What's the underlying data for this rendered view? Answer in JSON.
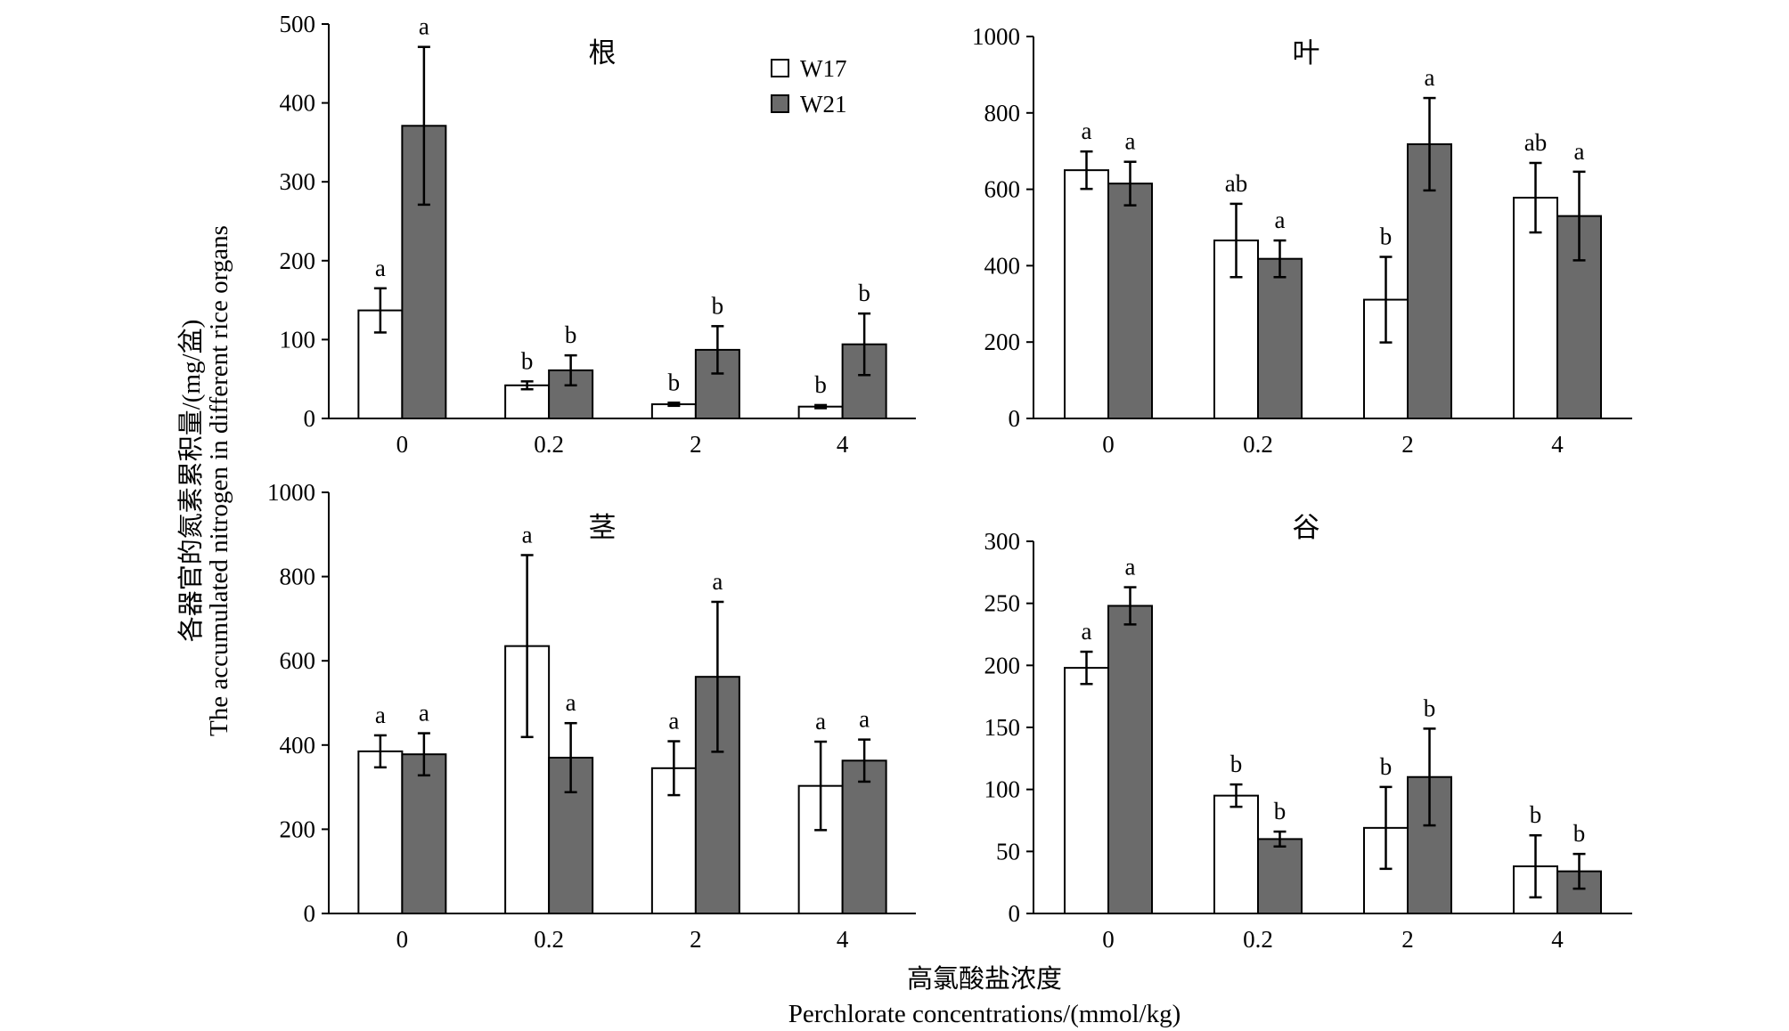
{
  "figure": {
    "ylabel_cn": "各器官的氮素累积量/(mg/盆)",
    "ylabel_en": "The accumulated nitrogen in different rice organs",
    "xlabel_cn": "高氯酸盐浓度",
    "xlabel_en": "Perchlorate concentrations/(mmol/kg)"
  },
  "legend": [
    "W17",
    "W21"
  ],
  "colors": {
    "W17": "#ffffff",
    "W21": "#6b6b6b",
    "axis": "#000000"
  },
  "chart_data": [
    {
      "type": "bar",
      "title": "根",
      "categories": [
        "0",
        "0.2",
        "2",
        "4"
      ],
      "ylim": [
        0,
        500
      ],
      "yticks": [
        0,
        100,
        200,
        300,
        400,
        500
      ],
      "series": [
        {
          "name": "W17",
          "values": [
            137,
            42,
            18,
            15
          ],
          "errors": [
            28,
            5,
            2,
            2
          ],
          "letters": [
            "a",
            "b",
            "b",
            "b"
          ]
        },
        {
          "name": "W21",
          "values": [
            371,
            61,
            87,
            94
          ],
          "errors": [
            100,
            19,
            30,
            39
          ],
          "letters": [
            "a",
            "b",
            "b",
            "b"
          ]
        }
      ]
    },
    {
      "type": "bar",
      "title": "叶",
      "categories": [
        "0",
        "0.2",
        "2",
        "4"
      ],
      "ylim": [
        0,
        1000
      ],
      "yticks": [
        0,
        200,
        400,
        600,
        800,
        1000
      ],
      "series": [
        {
          "name": "W17",
          "values": [
            650,
            466,
            311,
            578
          ],
          "errors": [
            49,
            96,
            112,
            91
          ],
          "letters": [
            "a",
            "ab",
            "b",
            "ab"
          ]
        },
        {
          "name": "W21",
          "values": [
            615,
            418,
            718,
            530
          ],
          "errors": [
            57,
            48,
            121,
            116
          ],
          "letters": [
            "a",
            "a",
            "a",
            "a"
          ]
        }
      ]
    },
    {
      "type": "bar",
      "title": "茎",
      "categories": [
        "0",
        "0.2",
        "2",
        "4"
      ],
      "ylim": [
        0,
        1000
      ],
      "yticks": [
        0,
        200,
        400,
        600,
        800,
        1000
      ],
      "series": [
        {
          "name": "W17",
          "values": [
            385,
            635,
            345,
            303
          ],
          "errors": [
            38,
            216,
            64,
            105
          ],
          "letters": [
            "a",
            "a",
            "a",
            "a"
          ]
        },
        {
          "name": "W21",
          "values": [
            378,
            370,
            562,
            363
          ],
          "errors": [
            50,
            82,
            178,
            50
          ],
          "letters": [
            "a",
            "a",
            "a",
            "a"
          ]
        }
      ]
    },
    {
      "type": "bar",
      "title": "谷",
      "categories": [
        "0",
        "0.2",
        "2",
        "4"
      ],
      "ylim": [
        0,
        300
      ],
      "yticks": [
        0,
        50,
        100,
        150,
        200,
        250,
        300
      ],
      "series": [
        {
          "name": "W17",
          "values": [
            198,
            95,
            69,
            38
          ],
          "errors": [
            13,
            9,
            33,
            25
          ],
          "letters": [
            "a",
            "b",
            "b",
            "b"
          ]
        },
        {
          "name": "W21",
          "values": [
            248,
            60,
            110,
            34
          ],
          "errors": [
            15,
            6,
            39,
            14
          ],
          "letters": [
            "a",
            "b",
            "b",
            "b"
          ]
        }
      ]
    }
  ]
}
